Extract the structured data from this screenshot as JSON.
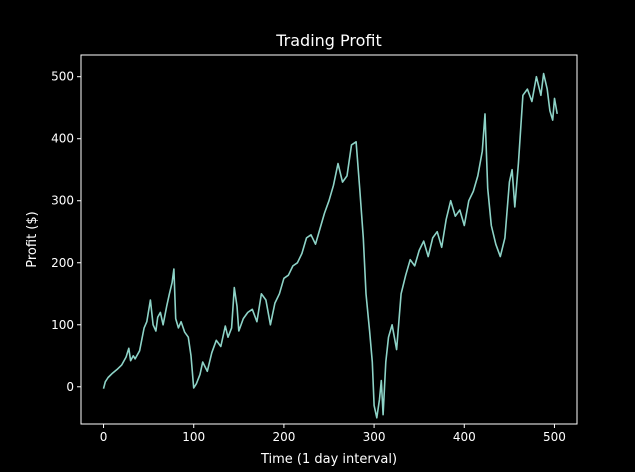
{
  "chart_data": {
    "type": "line",
    "title": "Trading Profit",
    "xlabel": "Time (1 day interval)",
    "ylabel": "Profit ($)",
    "xlim": [
      -25,
      525
    ],
    "ylim": [
      -60,
      535
    ],
    "xticks": [
      0,
      100,
      200,
      300,
      400,
      500
    ],
    "yticks": [
      0,
      100,
      200,
      300,
      400,
      500
    ],
    "grid": false,
    "colors": {
      "background": "#000000",
      "axes": "#ffffff",
      "line": "#8dd3c7"
    },
    "series": [
      {
        "x": [
          0,
          2,
          5,
          10,
          15,
          20,
          25,
          28,
          30,
          33,
          35,
          40,
          45,
          48,
          52,
          55,
          58,
          60,
          63,
          66,
          70,
          73,
          76,
          78,
          80,
          83,
          86,
          90,
          94,
          97,
          100,
          103,
          107,
          110,
          115,
          120,
          125,
          130,
          135,
          138,
          142,
          145,
          148,
          150,
          155,
          160,
          165,
          170,
          175,
          180,
          185,
          190,
          195,
          200,
          205,
          210,
          215,
          220,
          225,
          230,
          235,
          240,
          245,
          250,
          255,
          260,
          265,
          270,
          275,
          280,
          284,
          288,
          291,
          295,
          298,
          300,
          303,
          306,
          308,
          310,
          313,
          316,
          320,
          325,
          330,
          335,
          340,
          345,
          350,
          355,
          360,
          365,
          370,
          375,
          380,
          385,
          390,
          395,
          400,
          405,
          410,
          415,
          420,
          423,
          426,
          430,
          435,
          440,
          445,
          450,
          453,
          456,
          460,
          465,
          470,
          475,
          480,
          485,
          488,
          492,
          495,
          498,
          500,
          503
        ],
        "y": [
          -3,
          8,
          15,
          22,
          28,
          35,
          48,
          62,
          42,
          50,
          45,
          58,
          95,
          105,
          140,
          100,
          90,
          112,
          120,
          100,
          130,
          150,
          168,
          190,
          110,
          95,
          105,
          88,
          80,
          50,
          -2,
          5,
          20,
          40,
          25,
          55,
          75,
          65,
          98,
          80,
          95,
          160,
          130,
          90,
          110,
          120,
          125,
          105,
          150,
          140,
          100,
          135,
          150,
          175,
          180,
          195,
          200,
          215,
          240,
          245,
          230,
          255,
          280,
          300,
          325,
          360,
          330,
          340,
          390,
          395,
          320,
          240,
          150,
          90,
          40,
          -30,
          -50,
          -20,
          10,
          -45,
          40,
          80,
          100,
          60,
          150,
          180,
          205,
          195,
          220,
          235,
          210,
          240,
          250,
          225,
          270,
          300,
          275,
          285,
          260,
          300,
          315,
          340,
          380,
          440,
          320,
          260,
          230,
          210,
          240,
          330,
          350,
          290,
          360,
          470,
          480,
          460,
          500,
          470,
          505,
          480,
          445,
          430,
          465,
          440
        ]
      }
    ]
  }
}
